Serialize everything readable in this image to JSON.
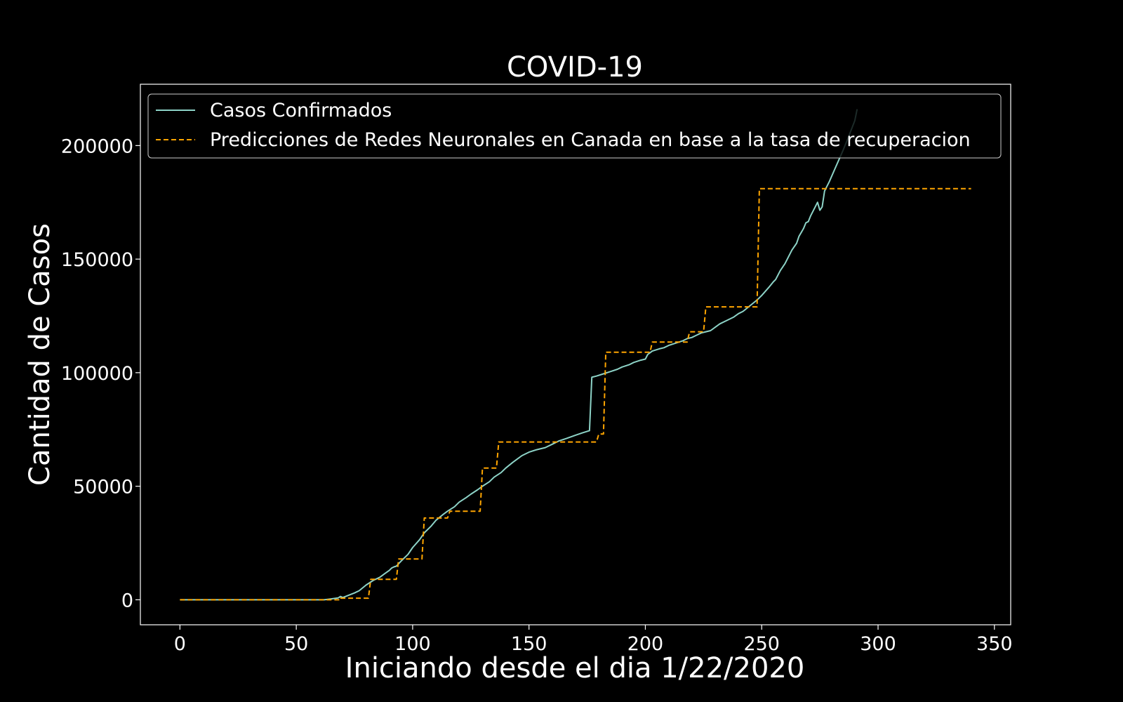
{
  "chart_data": {
    "type": "line",
    "title": "COVID-19",
    "xlabel": "Iniciando desde el dia 1/22/2020",
    "ylabel": "Cantidad de Casos",
    "xlim": [
      -17,
      357
    ],
    "ylim": [
      -11000,
      227000
    ],
    "x_ticks": [
      0,
      50,
      100,
      150,
      200,
      250,
      300,
      350
    ],
    "y_ticks": [
      0,
      50000,
      100000,
      150000,
      200000
    ],
    "grid": false,
    "legend_position": "top-left",
    "background": "#000000",
    "foreground": "#ffffff",
    "series": [
      {
        "name": "Casos Confirmados",
        "color": "#8dd3c7",
        "style": "solid",
        "points": [
          [
            0,
            0
          ],
          [
            30,
            0
          ],
          [
            62,
            0
          ],
          [
            65,
            400
          ],
          [
            68,
            800
          ],
          [
            69,
            1500
          ],
          [
            70,
            1000
          ],
          [
            72,
            1800
          ],
          [
            75,
            3000
          ],
          [
            77,
            4000
          ],
          [
            80,
            6500
          ],
          [
            83,
            8500
          ],
          [
            86,
            10000
          ],
          [
            88,
            11500
          ],
          [
            90,
            13000
          ],
          [
            91,
            14000
          ],
          [
            92,
            14500
          ],
          [
            93,
            14800
          ],
          [
            95,
            17000
          ],
          [
            98,
            20000
          ],
          [
            100,
            23000
          ],
          [
            103,
            26500
          ],
          [
            105,
            29500
          ],
          [
            108,
            32500
          ],
          [
            110,
            35000
          ],
          [
            113,
            37500
          ],
          [
            115,
            39000
          ],
          [
            118,
            41000
          ],
          [
            120,
            43000
          ],
          [
            123,
            45000
          ],
          [
            125,
            46500
          ],
          [
            128,
            48500
          ],
          [
            130,
            50000
          ],
          [
            133,
            52000
          ],
          [
            135,
            54000
          ],
          [
            138,
            56000
          ],
          [
            140,
            58000
          ],
          [
            143,
            60500
          ],
          [
            145,
            62000
          ],
          [
            147,
            63500
          ],
          [
            150,
            65000
          ],
          [
            153,
            66000
          ],
          [
            157,
            67000
          ],
          [
            160,
            68500
          ],
          [
            163,
            70000
          ],
          [
            166,
            71000
          ],
          [
            170,
            72500
          ],
          [
            173,
            73500
          ],
          [
            176,
            74500
          ],
          [
            177,
            98000
          ],
          [
            179,
            98500
          ],
          [
            182,
            99500
          ],
          [
            185,
            100500
          ],
          [
            188,
            101500
          ],
          [
            190,
            102500
          ],
          [
            193,
            103500
          ],
          [
            195,
            104500
          ],
          [
            198,
            105500
          ],
          [
            200,
            106000
          ],
          [
            201,
            108000
          ],
          [
            203,
            109500
          ],
          [
            206,
            110500
          ],
          [
            208,
            111000
          ],
          [
            210,
            112000
          ],
          [
            213,
            113000
          ],
          [
            216,
            114000
          ],
          [
            218,
            115000
          ],
          [
            220,
            115500
          ],
          [
            222,
            116500
          ],
          [
            224,
            117500
          ],
          [
            226,
            118000
          ],
          [
            228,
            118500
          ],
          [
            230,
            120000
          ],
          [
            232,
            121500
          ],
          [
            235,
            123000
          ],
          [
            238,
            124500
          ],
          [
            240,
            126000
          ],
          [
            242,
            127000
          ],
          [
            245,
            129500
          ],
          [
            248,
            132000
          ],
          [
            250,
            134000
          ],
          [
            253,
            137500
          ],
          [
            255,
            140000
          ],
          [
            256,
            141000
          ],
          [
            258,
            145000
          ],
          [
            260,
            148000
          ],
          [
            263,
            154000
          ],
          [
            265,
            157000
          ],
          [
            266,
            160000
          ],
          [
            268,
            163500
          ],
          [
            269,
            166000
          ],
          [
            270,
            166500
          ],
          [
            271,
            169000
          ],
          [
            273,
            173000
          ],
          [
            274,
            175000
          ],
          [
            275,
            171500
          ],
          [
            276,
            173000
          ],
          [
            277,
            180000
          ],
          [
            279,
            184000
          ],
          [
            282,
            191000
          ],
          [
            285,
            198000
          ],
          [
            287,
            203000
          ],
          [
            290,
            211000
          ],
          [
            291,
            216000
          ]
        ]
      },
      {
        "name": "Predicciones de Redes Neuronales en Canada en base a la tasa de recuperacion",
        "color": "#ffa500",
        "style": "dashed",
        "points": [
          [
            0,
            0
          ],
          [
            69,
            0
          ],
          [
            69,
            700
          ],
          [
            81,
            700
          ],
          [
            82,
            9000
          ],
          [
            93,
            9000
          ],
          [
            94,
            18000
          ],
          [
            104,
            18000
          ],
          [
            105,
            36000
          ],
          [
            115,
            36000
          ],
          [
            116,
            39000
          ],
          [
            129,
            39000
          ],
          [
            130,
            58000
          ],
          [
            136,
            58000
          ],
          [
            137,
            69500
          ],
          [
            179,
            69500
          ],
          [
            180,
            73000
          ],
          [
            182,
            73000
          ],
          [
            183,
            109000
          ],
          [
            202,
            109000
          ],
          [
            203,
            113500
          ],
          [
            218,
            113500
          ],
          [
            219,
            118000
          ],
          [
            225,
            118000
          ],
          [
            226,
            129000
          ],
          [
            248,
            129000
          ],
          [
            249,
            181000
          ],
          [
            340,
            181000
          ]
        ]
      }
    ]
  }
}
